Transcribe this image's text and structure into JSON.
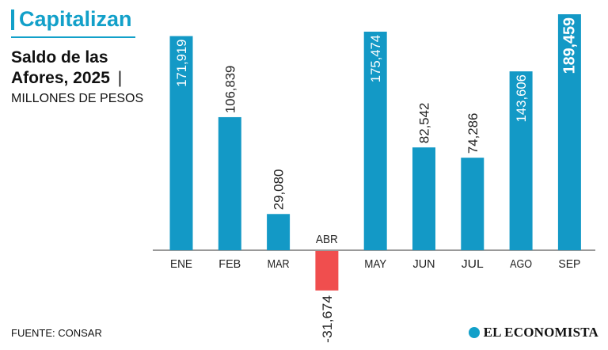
{
  "header": {
    "kicker": "Capitalizan",
    "title_line1": "Saldo de las",
    "title_line2": "Afores, 2025",
    "title_sep": "|",
    "subtitle": "MILLONES DE PESOS"
  },
  "footer": {
    "source": "FUENTE: CONSAR",
    "brand": "EL ECONOMISTA"
  },
  "colors": {
    "accent": "#12a0c9",
    "positive": "#1399c6",
    "negative": "#f04e4e",
    "axis": "#333333"
  },
  "chart_data": {
    "type": "bar",
    "categories": [
      "ENE",
      "FEB",
      "MAR",
      "ABR",
      "MAY",
      "JUN",
      "JUL",
      "AGO",
      "SEP"
    ],
    "values": [
      171919,
      106839,
      29080,
      -31674,
      175474,
      82542,
      74286,
      143606,
      189459
    ],
    "value_labels": [
      "171,919",
      "106,839",
      "29,080",
      "-31,674",
      "175,474",
      "82,542",
      "74,286",
      "143,606",
      "189,459"
    ],
    "title": "Saldo de las Afores, 2025",
    "ylabel": "MILLONES DE PESOS",
    "ylim": [
      -31674,
      189459
    ],
    "grid": false,
    "legend": "none"
  }
}
